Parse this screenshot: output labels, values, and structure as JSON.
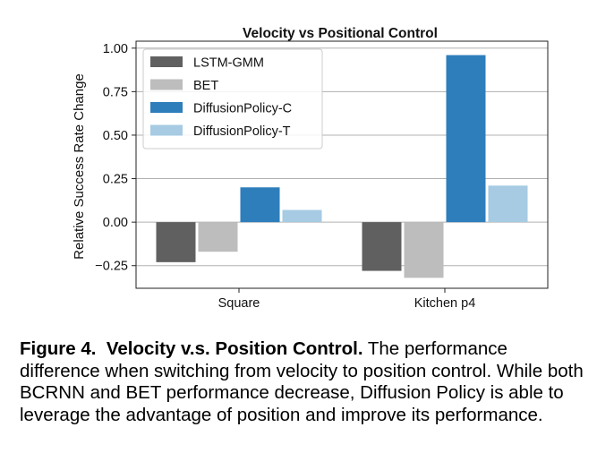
{
  "chart_data": {
    "type": "bar",
    "title": "Velocity vs Positional Control",
    "xlabel": "",
    "ylabel": "Relative Success Rate Change",
    "categories": [
      "Square",
      "Kitchen p4"
    ],
    "ylim": [
      -0.38,
      1.04
    ],
    "yticks": [
      -0.25,
      0.0,
      0.25,
      0.5,
      0.75,
      1.0
    ],
    "ytick_labels": [
      "−0.25",
      "0.00",
      "0.25",
      "0.50",
      "0.75",
      "1.00"
    ],
    "grid": true,
    "legend_position": "top-left",
    "series": [
      {
        "name": "LSTM-GMM",
        "color": "#606060",
        "values": [
          -0.23,
          -0.28
        ]
      },
      {
        "name": "BET",
        "color": "#bdbdbd",
        "values": [
          -0.17,
          -0.32
        ]
      },
      {
        "name": "DiffusionPolicy-C",
        "color": "#2e7ebc",
        "values": [
          0.2,
          0.96
        ]
      },
      {
        "name": "DiffusionPolicy-T",
        "color": "#a6cbe3",
        "values": [
          0.07,
          0.21
        ]
      }
    ]
  },
  "caption": {
    "label": "Figure 4.",
    "title": "Velocity v.s. Position Control.",
    "text": "The performance difference when switching from velocity to position control. While both BCRNN and BET performance decrease, Diffusion Policy is able to leverage the advantage of position and improve its performance."
  }
}
